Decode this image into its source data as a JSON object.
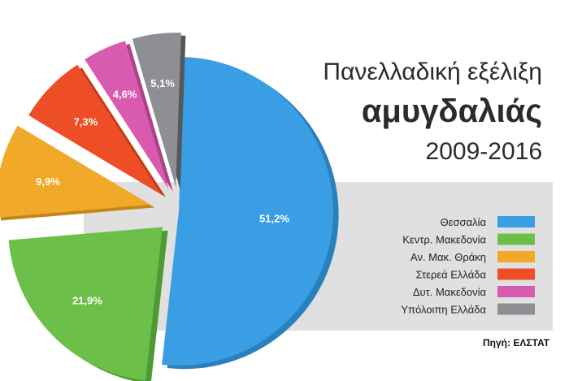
{
  "chart_data": {
    "type": "pie",
    "title_lines": [
      "Πανελλαδική εξέλιξη",
      "αμυγδαλιάς",
      "2009-2016"
    ],
    "slices": [
      {
        "label": "Θεσσαλία",
        "value": 51.2,
        "display": "51,2%",
        "color": "#3a9ee4",
        "side": "#2a7fbd"
      },
      {
        "label": "Κεντρ. Μακεδονία",
        "value": 21.9,
        "display": "21,9%",
        "color": "#6cc04a",
        "side": "#4f9a33"
      },
      {
        "label": "Αν. Μακ. Θράκη",
        "value": 9.9,
        "display": "9,9%",
        "color": "#f0a928",
        "side": "#c4861b"
      },
      {
        "label": "Στερεά Ελλάδα",
        "value": 7.3,
        "display": "7,3%",
        "color": "#ee4e25",
        "side": "#bf3a18"
      },
      {
        "label": "Δυτ. Μακεδονία",
        "value": 4.6,
        "display": "4,6%",
        "color": "#d95bb0",
        "side": "#ad4289"
      },
      {
        "label": "Υπόλοιπη Ελλάδα",
        "value": 5.1,
        "display": "5,1%",
        "color": "#8e8f92",
        "side": "#55575b"
      }
    ],
    "legend_position": "right",
    "source": "Πηγή: ΕΛΣΤΑΤ"
  }
}
